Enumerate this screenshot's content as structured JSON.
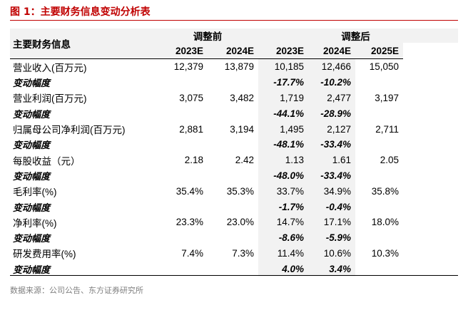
{
  "title": "图 1：主要财务信息变动分析表",
  "header": {
    "label": "主要财务信息",
    "group_before": "调整前",
    "group_after": "调整后",
    "years": [
      "2023E",
      "2024E",
      "2023E",
      "2024E",
      "2025E"
    ]
  },
  "rows": [
    {
      "label": "营业收入(百万元)",
      "values": [
        "12,379",
        "13,879",
        "10,185",
        "12,466",
        "15,050"
      ]
    },
    {
      "label": "变动幅度",
      "changes": [
        "-17.7%",
        "-10.2%"
      ]
    },
    {
      "label": "营业利润(百万元)",
      "values": [
        "3,075",
        "3,482",
        "1,719",
        "2,477",
        "3,197"
      ]
    },
    {
      "label": "变动幅度",
      "changes": [
        "-44.1%",
        "-28.9%"
      ]
    },
    {
      "label": "归属母公司净利润(百万元)",
      "values": [
        "2,881",
        "3,194",
        "1,495",
        "2,127",
        "2,711"
      ]
    },
    {
      "label": "变动幅度",
      "changes": [
        "-48.1%",
        "-33.4%"
      ]
    },
    {
      "label": "每股收益（元）",
      "values": [
        "2.18",
        "2.42",
        "1.13",
        "1.61",
        "2.05"
      ]
    },
    {
      "label": "变动幅度",
      "changes": [
        "-48.0%",
        "-33.4%"
      ]
    },
    {
      "label": "毛利率(%)",
      "values": [
        "35.4%",
        "35.3%",
        "33.7%",
        "34.9%",
        "35.8%"
      ]
    },
    {
      "label": "变动幅度",
      "changes": [
        "-1.7%",
        "-0.4%"
      ]
    },
    {
      "label": "净利率(%)",
      "values": [
        "23.3%",
        "23.0%",
        "14.7%",
        "17.1%",
        "18.0%"
      ]
    },
    {
      "label": "变动幅度",
      "changes": [
        "-8.6%",
        "-5.9%"
      ]
    },
    {
      "label": "研发费用率(%)",
      "values": [
        "7.4%",
        "7.3%",
        "11.4%",
        "10.6%",
        "10.3%"
      ]
    },
    {
      "label": "变动幅度",
      "changes": [
        "4.0%",
        "3.4%"
      ]
    }
  ],
  "source": "数据来源：公司公告、东方证券研究所",
  "colors": {
    "title": "#c00000",
    "shade": "#f2f2f2",
    "source": "#7f7f7f"
  }
}
